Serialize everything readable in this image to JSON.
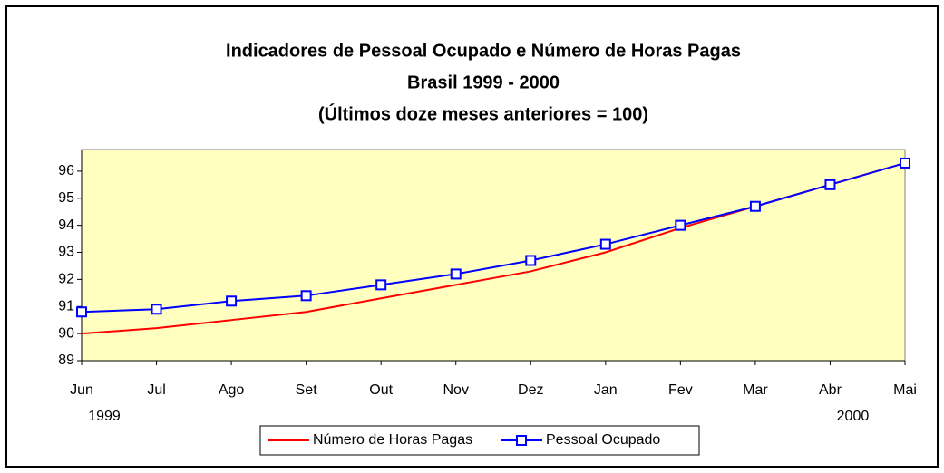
{
  "chart_data": {
    "type": "line",
    "title": [
      "Indicadores de Pessoal Ocupado e Número de Horas Pagas",
      "Brasil  1999 - 2000",
      "(Últimos doze meses anteriores = 100)"
    ],
    "categories": [
      "Jun",
      "Jul",
      "Ago",
      "Set",
      "Out",
      "Nov",
      "Dez",
      "Jan",
      "Fev",
      "Mar",
      "Abr",
      "Mai"
    ],
    "category_years": [
      "1999",
      null,
      null,
      null,
      null,
      null,
      null,
      null,
      null,
      null,
      "2000",
      null
    ],
    "series": [
      {
        "name": "Número de Horas Pagas",
        "color": "#ff0000",
        "marker": false,
        "values": [
          90.0,
          90.2,
          90.5,
          90.8,
          91.3,
          91.8,
          92.3,
          93.0,
          93.9,
          94.7,
          95.5,
          96.3
        ]
      },
      {
        "name": "Pessoal Ocupado",
        "color": "#0000ff",
        "marker": true,
        "values": [
          90.8,
          90.9,
          91.2,
          91.4,
          91.8,
          92.2,
          92.7,
          93.3,
          94.0,
          94.7,
          95.5,
          96.3
        ]
      }
    ],
    "ylim": [
      89,
      96.8
    ],
    "yticks": [
      89,
      90,
      91,
      92,
      93,
      94,
      95,
      96
    ],
    "plot_background": "#ffffc0",
    "legend": "bottom"
  }
}
